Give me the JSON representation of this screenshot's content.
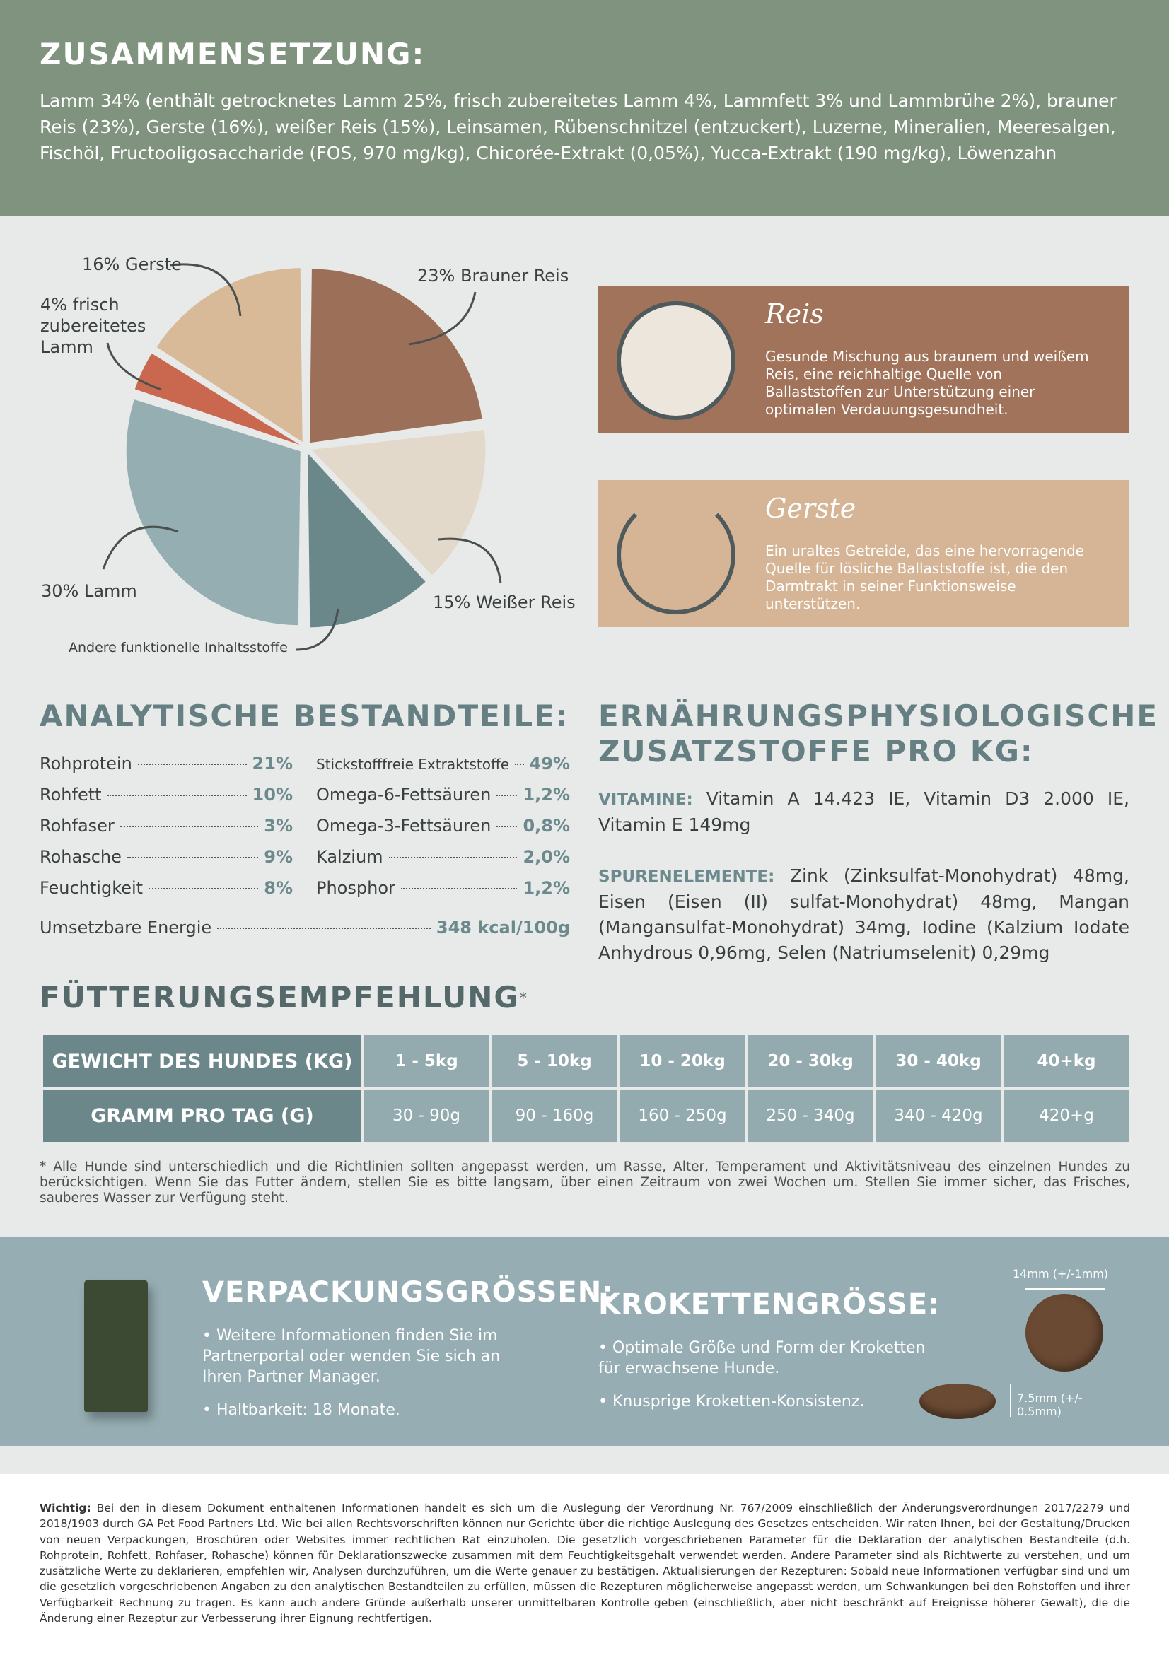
{
  "header": {
    "title": "ZUSAMMENSETZUNG:",
    "text": "Lamm 34% (enthält getrocknetes Lamm 25%, frisch zubereitetes Lamm 4%, Lammfett 3% und Lammbrühe 2%), brauner Reis (23%), Gerste (16%), weißer Reis (15%), Leinsamen, Rübenschnitzel (entzuckert), Luzerne, Mineralien, Meeresalgen, Fischöl, Fructooligosaccharide (FOS, 970 mg/kg), Chicorée-Extrakt (0,05%), Yucca-Extrakt (190 mg/kg), Löwenzahn"
  },
  "pie": {
    "slices": [
      {
        "label": "23% Brauner Reis",
        "value": 23,
        "color": "#9c7058"
      },
      {
        "label": "15% Weißer Reis",
        "value": 15,
        "color": "#e3d9ca"
      },
      {
        "label": "Andere funktionelle Inhaltsstoffe",
        "value": 12,
        "color": "#6a878a"
      },
      {
        "label": "30% Lamm",
        "value": 30,
        "color": "#94aeb2"
      },
      {
        "label": "4% frisch zubereitetes Lamm",
        "value": 4,
        "color": "#c9674f"
      },
      {
        "label": "16% Gerste",
        "value": 16,
        "color": "#d8ba99"
      }
    ]
  },
  "cards": [
    {
      "title": "Reis",
      "text": "Gesunde Mischung aus braunem und weißem Reis, eine reichhaltige Quelle von Ballaststoffen zur Unterstützung einer optimalen Verdauungsgesundheit."
    },
    {
      "title": "Gerste",
      "text": "Ein uraltes Getreide, das eine hervorragende Quelle für lösliche Ballaststoffe ist, die den Darmtrakt in seiner Funktionsweise unterstützen."
    }
  ],
  "analytical": {
    "title": "ANALYTISCHE BESTANDTEILE:",
    "left": [
      {
        "name": "Rohprotein",
        "value": "21%"
      },
      {
        "name": "Rohfett",
        "value": "10%"
      },
      {
        "name": "Rohfaser",
        "value": "3%"
      },
      {
        "name": "Rohasche",
        "value": "9%"
      },
      {
        "name": "Feuchtigkeit",
        "value": "8%"
      }
    ],
    "right": [
      {
        "name": "Stickstofffreie Extraktstoffe",
        "value": "49%"
      },
      {
        "name": "Omega-6-Fettsäuren",
        "value": "1,2%"
      },
      {
        "name": "Omega-3-Fettsäuren",
        "value": "0,8%"
      },
      {
        "name": "Kalzium",
        "value": "2,0%"
      },
      {
        "name": "Phosphor",
        "value": "1,2%"
      }
    ],
    "energy": {
      "name": "Umsetzbare Energie",
      "value": "348 kcal/100g"
    }
  },
  "additives": {
    "title": "ERNÄHRUNGSPHYSIOLOGISCHE ZUSATZSTOFFE PRO KG:",
    "vitamins_label": "VITAMINE:",
    "vitamins": "Vitamin A 14.423 IE, Vitamin D3 2.000 IE, Vitamin E 149mg",
    "trace_label": "SPURENELEMENTE:",
    "trace": "Zink (Zinksulfat-Monohydrat) 48mg, Eisen (Eisen (II) sulfat-Monohydrat) 48mg, Mangan (Mangansulfat-Monohydrat) 34mg, Iodine (Kalzium Iodate Anhydrous 0,96mg, Selen (Natriumselenit) 0,29mg"
  },
  "feeding": {
    "title": "FÜTTERUNGSEMPFEHLUNG",
    "mark": "*",
    "rows": [
      [
        "GEWICHT DES HUNDES (KG)",
        "1 - 5kg",
        "5 - 10kg",
        "10 - 20kg",
        "20 - 30kg",
        "30 - 40kg",
        "40+kg"
      ],
      [
        "GRAMM PRO TAG (G)",
        "30 - 90g",
        "90 - 160g",
        "160 - 250g",
        "250 - 340g",
        "340 - 420g",
        "420+g"
      ]
    ],
    "note": "* Alle Hunde sind unterschiedlich und die Richtlinien sollten angepasst werden, um Rasse, Alter, Temperament und Aktivitätsniveau des einzelnen Hundes zu berücksichtigen. Wenn Sie das Futter ändern, stellen Sie es bitte langsam, über einen Zeitraum von zwei Wochen um. Stellen Sie immer sicher, das Frisches, sauberes Wasser zur Verfügung steht."
  },
  "packaging": {
    "title": "VERPACKUNGSGRÖSSEN:",
    "bullets": [
      "• Weitere Informationen finden Sie im Partnerportal oder wenden Sie sich an Ihren Partner Manager.",
      "• Haltbarkeit: 18 Monate."
    ]
  },
  "kibble": {
    "title": "KROKETTENGRÖSSE:",
    "bullets": [
      "• Optimale Größe und Form der Kroketten für erwachsene Hunde.",
      "• Knusprige Kroketten-Konsistenz."
    ],
    "diameter": "14mm (+/-1mm)",
    "height": "7.5mm (+/- 0.5mm)"
  },
  "disclaimer": {
    "label": "Wichtig:",
    "text": "Bei den in diesem Dokument enthaltenen Informationen handelt es sich um die Auslegung der Verordnung Nr. 767/2009 einschließlich der Änderungsverordnungen 2017/2279 und 2018/1903 durch GA Pet Food Partners Ltd. Wie bei allen Rechtsvorschriften können nur Gerichte über die richtige Auslegung des Gesetzes entscheiden. Wir raten Ihnen, bei der Gestaltung/Drucken von neuen Verpackungen, Broschüren oder Websites immer rechtlichen Rat einzuholen. Die gesetzlich vorgeschriebenen Parameter für die Deklaration der analytischen Bestandteile (d.h. Rohprotein, Rohfett, Rohfaser, Rohasche) können für Deklarationszwecke zusammen mit dem Feuchtigkeitsgehalt verwendet werden. Andere Parameter sind als Richtwerte zu verstehen, und um zusätzliche Werte zu deklarieren, empfehlen wir, Analysen durchzuführen, um die Werte genauer zu bestätigen. Aktualisierungen der Rezepturen: Sobald neue Informationen verfügbar sind und um die gesetzlich vorgeschriebenen Angaben zu den analytischen Bestandteilen zu erfüllen, müssen die Rezepturen möglicherweise angepasst werden, um Schwankungen bei den Rohstoffen und ihrer Verfügbarkeit Rechnung zu tragen. Es kann auch andere Gründe außerhalb unserer unmittelbaren Kontrolle geben (einschließlich, aber nicht beschränkt auf Ereignisse höherer Gewalt), die die Änderung einer Rezeptur zur Verbesserung ihrer Eignung rechtfertigen."
  }
}
